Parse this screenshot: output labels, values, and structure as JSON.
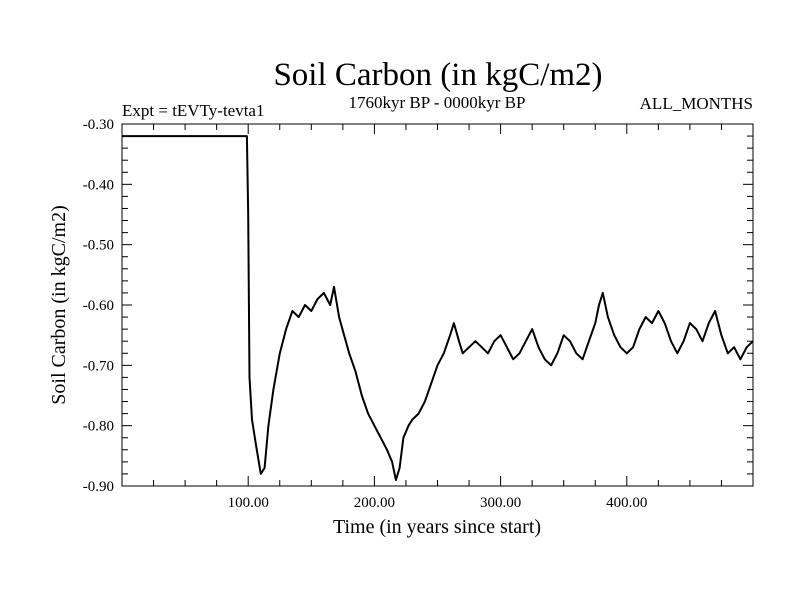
{
  "chart_data": {
    "type": "line",
    "title": "Soil Carbon (in kgC/m2)",
    "subtitle_left": "Expt = tEVTy-tevta1",
    "subtitle_center": "1760kyr BP - 0000kyr BP",
    "subtitle_right": "ALL_MONTHS",
    "xlabel": "Time (in years since start)",
    "ylabel": "Soil Carbon (in kgC/m2)",
    "xlim": [
      0,
      500
    ],
    "ylim": [
      -0.9,
      -0.3
    ],
    "x_ticks": [
      100,
      200,
      300,
      400
    ],
    "x_tick_labels": [
      "100.00",
      "200.00",
      "300.00",
      "400.00"
    ],
    "y_ticks": [
      -0.3,
      -0.4,
      -0.5,
      -0.6,
      -0.7,
      -0.8,
      -0.9
    ],
    "y_tick_labels": [
      "-0.30",
      "-0.40",
      "-0.50",
      "-0.60",
      "-0.70",
      "-0.80",
      "-0.90"
    ],
    "series": [
      {
        "name": "Soil Carbon",
        "color": "#000000",
        "x": [
          0,
          99,
          100,
          101,
          103,
          106,
          110,
          113,
          116,
          120,
          125,
          130,
          135,
          140,
          145,
          150,
          155,
          160,
          165,
          168,
          172,
          176,
          180,
          185,
          190,
          195,
          200,
          205,
          210,
          214,
          217,
          220,
          223,
          227,
          230,
          235,
          240,
          245,
          250,
          255,
          260,
          263,
          267,
          270,
          275,
          280,
          285,
          290,
          295,
          300,
          305,
          310,
          315,
          320,
          325,
          330,
          335,
          340,
          345,
          350,
          355,
          360,
          365,
          370,
          375,
          378,
          381,
          385,
          390,
          395,
          400,
          405,
          410,
          415,
          420,
          425,
          430,
          435,
          440,
          445,
          450,
          455,
          460,
          465,
          470,
          475,
          480,
          485,
          490,
          495,
          500
        ],
        "y": [
          -0.32,
          -0.32,
          -0.45,
          -0.72,
          -0.79,
          -0.83,
          -0.88,
          -0.87,
          -0.8,
          -0.74,
          -0.68,
          -0.64,
          -0.61,
          -0.62,
          -0.6,
          -0.61,
          -0.59,
          -0.58,
          -0.6,
          -0.57,
          -0.62,
          -0.65,
          -0.68,
          -0.71,
          -0.75,
          -0.78,
          -0.8,
          -0.82,
          -0.84,
          -0.86,
          -0.89,
          -0.87,
          -0.82,
          -0.8,
          -0.79,
          -0.78,
          -0.76,
          -0.73,
          -0.7,
          -0.68,
          -0.65,
          -0.63,
          -0.66,
          -0.68,
          -0.67,
          -0.66,
          -0.67,
          -0.68,
          -0.66,
          -0.65,
          -0.67,
          -0.69,
          -0.68,
          -0.66,
          -0.64,
          -0.67,
          -0.69,
          -0.7,
          -0.68,
          -0.65,
          -0.66,
          -0.68,
          -0.69,
          -0.66,
          -0.63,
          -0.6,
          -0.58,
          -0.62,
          -0.65,
          -0.67,
          -0.68,
          -0.67,
          -0.64,
          -0.62,
          -0.63,
          -0.61,
          -0.63,
          -0.66,
          -0.68,
          -0.66,
          -0.63,
          -0.64,
          -0.66,
          -0.63,
          -0.61,
          -0.65,
          -0.68,
          -0.67,
          -0.69,
          -0.67,
          -0.66
        ]
      }
    ]
  }
}
